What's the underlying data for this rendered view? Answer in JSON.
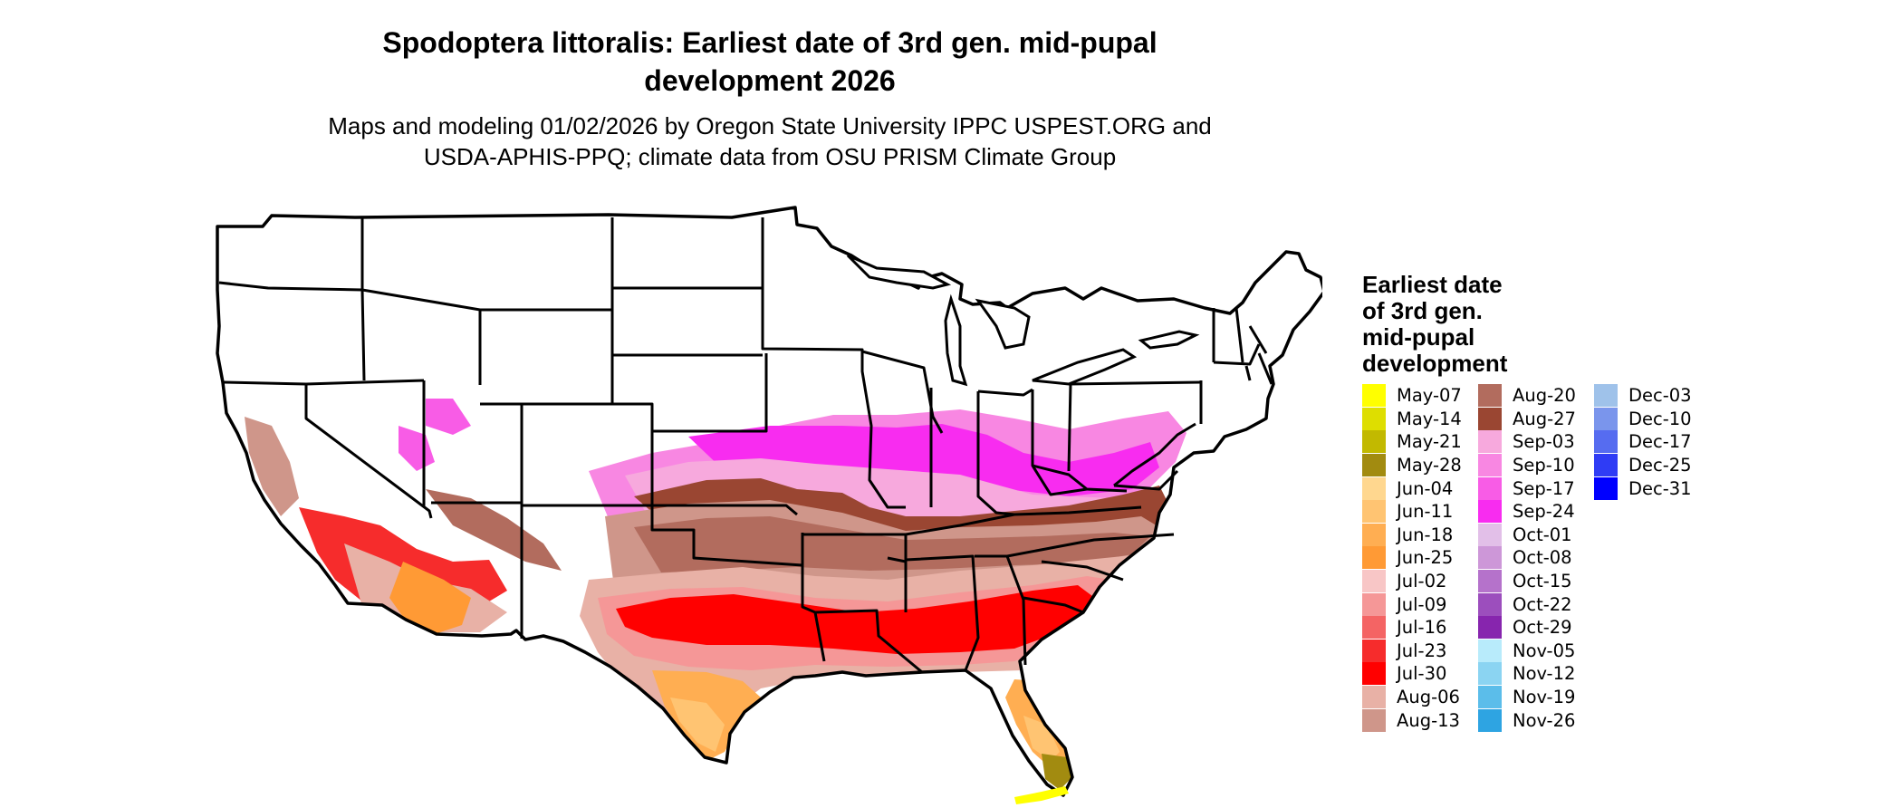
{
  "title_line1": "Spodoptera littoralis: Earliest date of 3rd gen. mid-pupal",
  "title_line2": "development 2026",
  "subtitle_line1": "Maps and modeling 01/02/2026 by Oregon State University IPPC USPEST.ORG and",
  "subtitle_line2": "USDA-APHIS-PPQ; climate data from OSU PRISM Climate Group",
  "legend": {
    "title_lines": [
      "Earliest date",
      "of 3rd gen.",
      "mid-pupal",
      "development"
    ],
    "columns": [
      [
        {
          "label": "May-07",
          "color": "#ffff00"
        },
        {
          "label": "May-14",
          "color": "#dede00"
        },
        {
          "label": "May-21",
          "color": "#c2b900"
        },
        {
          "label": "May-28",
          "color": "#a28b10"
        },
        {
          "label": "Jun-04",
          "color": "#ffd78f"
        },
        {
          "label": "Jun-11",
          "color": "#ffc472"
        },
        {
          "label": "Jun-18",
          "color": "#ffae52"
        },
        {
          "label": "Jun-25",
          "color": "#ff9a35"
        },
        {
          "label": "Jul-02",
          "color": "#f8c6c6"
        },
        {
          "label": "Jul-09",
          "color": "#f59797"
        },
        {
          "label": "Jul-16",
          "color": "#f46464"
        },
        {
          "label": "Jul-23",
          "color": "#f62c2c"
        },
        {
          "label": "Jul-30",
          "color": "#ff0000"
        },
        {
          "label": "Aug-06",
          "color": "#e8b1a6"
        },
        {
          "label": "Aug-13",
          "color": "#cf968a"
        }
      ],
      [
        {
          "label": "Aug-20",
          "color": "#b26c5e"
        },
        {
          "label": "Aug-27",
          "color": "#9a4632"
        },
        {
          "label": "Sep-03",
          "color": "#f7a9dd"
        },
        {
          "label": "Sep-10",
          "color": "#f887e2"
        },
        {
          "label": "Sep-17",
          "color": "#f85ce6"
        },
        {
          "label": "Sep-24",
          "color": "#f82cf0"
        },
        {
          "label": "Oct-01",
          "color": "#e2bfe8"
        },
        {
          "label": "Oct-08",
          "color": "#cd97d8"
        },
        {
          "label": "Oct-15",
          "color": "#b572cb"
        },
        {
          "label": "Oct-22",
          "color": "#9c4ebd"
        },
        {
          "label": "Oct-29",
          "color": "#8725ae"
        },
        {
          "label": "Nov-05",
          "color": "#b8ebfb"
        },
        {
          "label": "Nov-12",
          "color": "#8bd4f2"
        },
        {
          "label": "Nov-19",
          "color": "#5bbdea"
        },
        {
          "label": "Nov-26",
          "color": "#2ea4e2"
        }
      ],
      [
        {
          "label": "Dec-03",
          "color": "#9fc2ea"
        },
        {
          "label": "Dec-10",
          "color": "#7a95ec"
        },
        {
          "label": "Dec-17",
          "color": "#566cf0"
        },
        {
          "label": "Dec-25",
          "color": "#2f3cf5"
        },
        {
          "label": "Dec-31",
          "color": "#0000ff"
        }
      ]
    ]
  }
}
